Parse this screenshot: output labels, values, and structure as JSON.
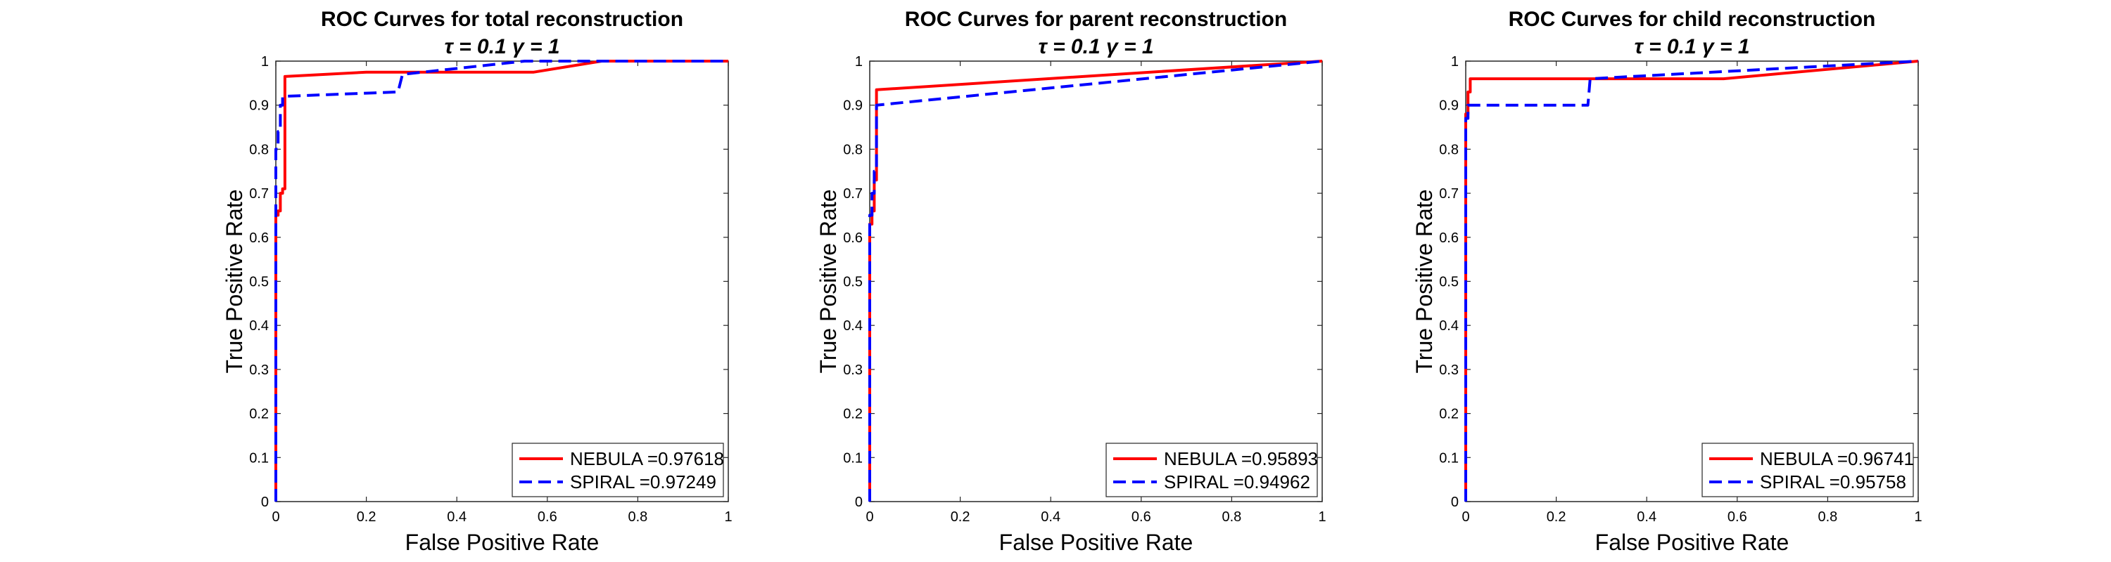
{
  "figure": {
    "title_line2": "τ = 0.1 γ = 1",
    "colors": {
      "nebula": "#ff0000",
      "spiral": "#0000ff",
      "axis": "#262626",
      "background": "#ffffff"
    }
  },
  "chart_data": [
    {
      "type": "line",
      "title": "ROC Curves for total reconstruction",
      "subtitle": "τ = 0.1 γ = 1",
      "xlabel": "False Positive Rate",
      "ylabel": "True Positive Rate",
      "xlim": [
        0,
        1
      ],
      "ylim": [
        0,
        1
      ],
      "xticks": [
        "0",
        "0.2",
        "0.4",
        "0.6",
        "0.8",
        "1"
      ],
      "yticks": [
        "0",
        "0.1",
        "0.2",
        "0.3",
        "0.4",
        "0.5",
        "0.6",
        "0.7",
        "0.8",
        "0.9",
        "1"
      ],
      "grid": false,
      "legend": "bottom-right",
      "series": [
        {
          "name": "NEBULA",
          "auc_label": "NEBULA =0.97618",
          "color": "#ff0000",
          "style": "solid",
          "x": [
            0,
            0.0,
            0.005,
            0.005,
            0.01,
            0.01,
            0.015,
            0.015,
            0.02,
            0.02,
            0.2,
            0.57,
            0.72,
            1.0
          ],
          "y": [
            0,
            0.65,
            0.65,
            0.66,
            0.66,
            0.7,
            0.7,
            0.71,
            0.71,
            0.965,
            0.975,
            0.975,
            1.0,
            1.0
          ]
        },
        {
          "name": "SPIRAL",
          "auc_label": "SPIRAL  =0.97249",
          "color": "#0000ff",
          "style": "dashed",
          "x": [
            0,
            0.0,
            0.005,
            0.005,
            0.01,
            0.01,
            0.015,
            0.015,
            0.27,
            0.28,
            0.55,
            1.0
          ],
          "y": [
            0,
            0.8,
            0.8,
            0.84,
            0.84,
            0.9,
            0.9,
            0.92,
            0.93,
            0.97,
            1.0,
            1.0
          ]
        }
      ]
    },
    {
      "type": "line",
      "title": "ROC Curves for parent reconstruction",
      "subtitle": "τ = 0.1 γ = 1",
      "xlabel": "False Positive Rate",
      "ylabel": "True Positive Rate",
      "xlim": [
        0,
        1
      ],
      "ylim": [
        0,
        1
      ],
      "xticks": [
        "0",
        "0.2",
        "0.4",
        "0.6",
        "0.8",
        "1"
      ],
      "yticks": [
        "0",
        "0.1",
        "0.2",
        "0.3",
        "0.4",
        "0.5",
        "0.6",
        "0.7",
        "0.8",
        "0.9",
        "1"
      ],
      "grid": false,
      "legend": "bottom-right",
      "series": [
        {
          "name": "NEBULA",
          "auc_label": "NEBULA =0.95893",
          "color": "#ff0000",
          "style": "solid",
          "x": [
            0,
            0.0,
            0.005,
            0.005,
            0.01,
            0.01,
            0.015,
            0.015,
            1.0
          ],
          "y": [
            0,
            0.63,
            0.63,
            0.66,
            0.66,
            0.73,
            0.73,
            0.935,
            1.0
          ]
        },
        {
          "name": "SPIRAL",
          "auc_label": "SPIRAL  =0.94962",
          "color": "#0000ff",
          "style": "dashed",
          "x": [
            0,
            0.0,
            0.005,
            0.005,
            0.01,
            0.01,
            0.015,
            0.015,
            1.0
          ],
          "y": [
            0,
            0.65,
            0.65,
            0.7,
            0.7,
            0.75,
            0.75,
            0.9,
            1.0
          ]
        }
      ]
    },
    {
      "type": "line",
      "title": "ROC Curves for child reconstruction",
      "subtitle": "τ = 0.1 γ = 1",
      "xlabel": "False Positive Rate",
      "ylabel": "True Positive Rate",
      "xlim": [
        0,
        1
      ],
      "ylim": [
        0,
        1
      ],
      "xticks": [
        "0",
        "0.2",
        "0.4",
        "0.6",
        "0.8",
        "1"
      ],
      "yticks": [
        "0",
        "0.1",
        "0.2",
        "0.3",
        "0.4",
        "0.5",
        "0.6",
        "0.7",
        "0.8",
        "0.9",
        "1"
      ],
      "grid": false,
      "legend": "bottom-right",
      "series": [
        {
          "name": "NEBULA",
          "auc_label": "NEBULA =0.96741",
          "color": "#ff0000",
          "style": "solid",
          "x": [
            0,
            0.0,
            0.005,
            0.005,
            0.01,
            0.01,
            0.57,
            1.0
          ],
          "y": [
            0,
            0.88,
            0.88,
            0.93,
            0.93,
            0.96,
            0.96,
            1.0
          ]
        },
        {
          "name": "SPIRAL",
          "auc_label": "SPIRAL  =0.95758",
          "color": "#0000ff",
          "style": "dashed",
          "x": [
            0,
            0.0,
            0.005,
            0.005,
            0.01,
            0.27,
            0.275,
            1.0
          ],
          "y": [
            0,
            0.87,
            0.87,
            0.9,
            0.9,
            0.9,
            0.96,
            1.0
          ]
        }
      ]
    }
  ]
}
